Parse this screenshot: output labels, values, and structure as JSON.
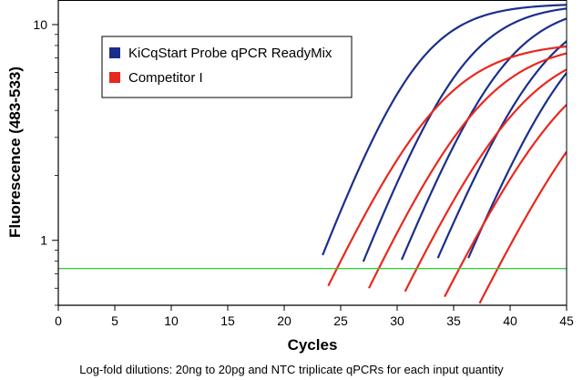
{
  "chart_data": {
    "type": "line",
    "title": "",
    "xlabel": "Cycles",
    "ylabel": "Fluorescence (483-533)",
    "caption": "Log-fold dilutions: 20ng to 20pg and NTC triplicate qPCRs for each input quantity",
    "xlim": [
      0,
      45
    ],
    "ylim": [
      0.5,
      13
    ],
    "y_scale": "log",
    "x_ticks": [
      0,
      5,
      10,
      15,
      20,
      25,
      30,
      35,
      40,
      45
    ],
    "y_ticks": [
      1,
      10
    ],
    "grid": false,
    "legend_position": "top-left",
    "legend": [
      {
        "label": "KiCqStart Probe qPCR ReadyMix",
        "color": "#1a2f8c"
      },
      {
        "label": "Competitor I",
        "color": "#e8281e"
      }
    ],
    "threshold": {
      "y": 0.74,
      "color": "#40c840"
    },
    "series": [
      {
        "group": "KiCqStart Probe qPCR ReadyMix",
        "color": "#1a2f8c",
        "start_x": 23.7,
        "plateau": 12.5,
        "midpoint": 31.5,
        "slope": 3.1
      },
      {
        "group": "KiCqStart Probe qPCR ReadyMix",
        "color": "#1a2f8c",
        "start_x": 27.3,
        "plateau": 12.5,
        "midpoint": 35.6,
        "slope": 3.2
      },
      {
        "group": "KiCqStart Probe qPCR ReadyMix",
        "color": "#1a2f8c",
        "start_x": 30.7,
        "plateau": 12.5,
        "midpoint": 39.2,
        "slope": 3.3
      },
      {
        "group": "KiCqStart Probe qPCR ReadyMix",
        "color": "#1a2f8c",
        "start_x": 33.9,
        "plateau": 12.5,
        "midpoint": 42.6,
        "slope": 3.4
      },
      {
        "group": "KiCqStart Probe qPCR ReadyMix",
        "color": "#1a2f8c",
        "start_x": 36.6,
        "plateau": 12.5,
        "midpoint": 45.3,
        "slope": 3.4
      },
      {
        "group": "Competitor I",
        "color": "#e8281e",
        "start_x": 24.2,
        "plateau": 8.3,
        "midpoint": 33.5,
        "slope": 3.8
      },
      {
        "group": "Competitor I",
        "color": "#e8281e",
        "start_x": 27.8,
        "plateau": 8.3,
        "midpoint": 37.2,
        "slope": 3.8
      },
      {
        "group": "Competitor I",
        "color": "#e8281e",
        "start_x": 31.0,
        "plateau": 8.3,
        "midpoint": 40.8,
        "slope": 3.9
      },
      {
        "group": "Competitor I",
        "color": "#e8281e",
        "start_x": 34.5,
        "plateau": 8.3,
        "midpoint": 44.8,
        "slope": 4.0
      },
      {
        "group": "Competitor I",
        "color": "#e8281e",
        "start_x": 37.6,
        "plateau": 8.3,
        "midpoint": 48.2,
        "slope": 4.0
      }
    ]
  }
}
